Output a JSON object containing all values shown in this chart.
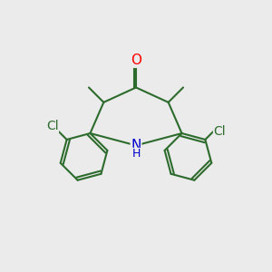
{
  "bg_color": "#ebebeb",
  "bond_color": "#2d6b2d",
  "bond_width": 1.5,
  "atom_colors": {
    "O": "#ff0000",
    "N": "#0000cc",
    "Cl": "#2d6b2d",
    "C": "#2d6b2d",
    "H": "#555555"
  },
  "font_size_atom": 10,
  "font_size_h": 8,
  "font_size_small": 8
}
